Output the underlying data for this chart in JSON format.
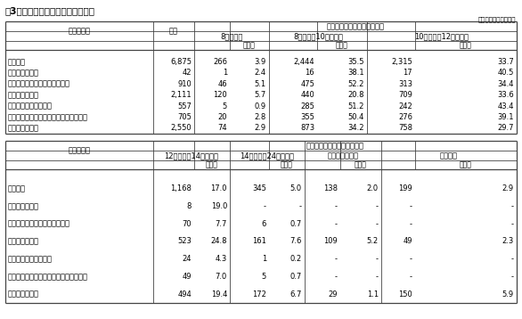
{
  "title": "表3　小売業の営業時間別事業所数",
  "unit_note": "（単位：事業所、％）",
  "rows": [
    "小売業計",
    "各種商品小売業",
    "織物・衣服・身の回り品小売業",
    "飲食料品小売業",
    "自動車・自転車小売業",
    "家具・じゅう器・家庭用機械器具小売業",
    "その他の小売業"
  ],
  "table1_data": [
    [
      "6,875",
      "266",
      "3.9",
      "2,444",
      "35.5",
      "2,315",
      "33.7"
    ],
    [
      "42",
      "1",
      "2.4",
      "16",
      "38.1",
      "17",
      "40.5"
    ],
    [
      "910",
      "46",
      "5.1",
      "475",
      "52.2",
      "313",
      "34.4"
    ],
    [
      "2,111",
      "120",
      "5.7",
      "440",
      "20.8",
      "709",
      "33.6"
    ],
    [
      "557",
      "5",
      "0.9",
      "285",
      "51.2",
      "242",
      "43.4"
    ],
    [
      "705",
      "20",
      "2.8",
      "355",
      "50.4",
      "276",
      "39.1"
    ],
    [
      "2,550",
      "74",
      "2.9",
      "873",
      "34.2",
      "758",
      "29.7"
    ]
  ],
  "table2_data": [
    [
      "1,168",
      "17.0",
      "345",
      "5.0",
      "138",
      "2.0",
      "199",
      "2.9"
    ],
    [
      "8",
      "19.0",
      "-",
      "-",
      "-",
      "-",
      "-",
      "-"
    ],
    [
      "70",
      "7.7",
      "6",
      "0.7",
      "-",
      "-",
      "-",
      "-"
    ],
    [
      "523",
      "24.8",
      "161",
      "7.6",
      "109",
      "5.2",
      "49",
      "2.3"
    ],
    [
      "24",
      "4.3",
      "1",
      "0.2",
      "-",
      "-",
      "-",
      "-"
    ],
    [
      "49",
      "7.0",
      "5",
      "0.7",
      "-",
      "-",
      "-",
      "-"
    ],
    [
      "494",
      "19.4",
      "172",
      "6.7",
      "29",
      "1.1",
      "150",
      "5.9"
    ]
  ],
  "bg_color": "#ffffff",
  "text_color": "#000000",
  "line_color": "#444444"
}
